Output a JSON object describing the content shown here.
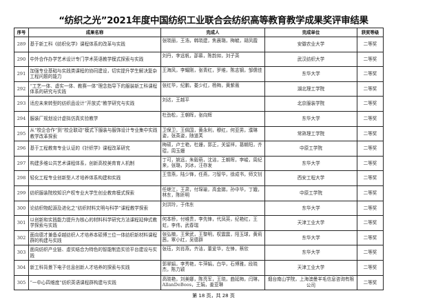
{
  "title": "“纺织之光”2021年度中国纺织工业联合会纺织高等教育教学成果奖评审结果",
  "headers": [
    "序号",
    "成果名称",
    "完成人",
    "完成单位",
    "获奖等级"
  ],
  "rows": [
    [
      "289",
      "基于新工科《纺织化学》课程体系的改革与实践",
      "张晓丽，王浩，韩晓建，焦晨璐，梅毓，胡凤霞",
      "安徽农业大学",
      "二等奖"
    ],
    [
      "290",
      "中外合作办学艺术设计专门学术英语教学模式探索与实践",
      "刘丹，李远帆，邵慕，陈韵如，刘子英",
      "武汉纺织大学",
      "二等奖"
    ],
    [
      "291",
      "加强专业基础与实践类课程的协同建设，切实提升学生解决复杂工程问题的能力",
      "王海风，李耀刚，张青红，罗维，陈志钢，邹儒佳",
      "东华大学",
      "二等奖"
    ],
    [
      "292",
      "“工艺一体、虚实一体、教赛一体”理念指导下的服装新工科课程体系的研究与实践",
      "张红华，纪鹏，娄少红，杨梅，黄紫薇",
      "湖北理工学院",
      "二等奖"
    ],
    [
      "293",
      "适应未来转型的纺织品设计“开放式”教学研究与实践",
      "刘达，王越平",
      "北京服装学院",
      "二等奖"
    ],
    [
      "294",
      "服装厂规划设计虚拟仿真实验教学",
      "杜劲松，王朝晖，张向辉",
      "东华大学",
      "二等奖"
    ],
    [
      "295",
      "从“校企合作”到“校企联动”模式下服装与服饰设计专业集中实践教学改革探索",
      "卫保卫，王佩国，黄永利，穆红，何亚男，濮琳姿，张英姿，随道芙",
      "常熟理工学院",
      "二等奖"
    ],
    [
      "296",
      "基于工程教育专业认证的《针织学》课程改革研究",
      "梅硕，卢士艳，杜姗，郭正，关留祥，葛朝阳，齐琨，周玉姗",
      "中原工学院",
      "二等奖"
    ],
    [
      "297",
      "构建多维公共艺术课程体系，创新高校美育育人机制",
      "丁可，姚远，朱毅萌，沈洁，王朝晖，李峻，周纪来，张璐，刘冰，汪存发",
      "东华大学",
      "二等奖"
    ],
    [
      "298",
      "轻化工程专业创新型人才培养体系构建和实践",
      "王雪燕，陆少锋，任燕，刁智华，徐成书，师文钊",
      "西安工程大学",
      "二等奖"
    ],
    [
      "299",
      "纺织服装院校知识产权专业大学生创业教育模式探索",
      "任继江，王肃，付琛瑜，高金娣，孙中华，丁娥，林东，陈昕明",
      "中原工学院",
      "二等奖"
    ],
    [
      "300",
      "论纺织物起源及进化之“纺织材料文明与科学”课程教学探索",
      "刘洪玲，于伟东",
      "东华大学",
      "二等奖"
    ],
    [
      "301",
      "以创新和实践能力提升为核心的材料科学研究方法课程延伸式教学探索与实践",
      "何本桥，付维贵，李先锋，代凤英，纪艳红，王虹，李伟，武春瑞",
      "天津工业大学",
      "二等奖"
    ],
    [
      "302",
      "面向德才兼备卓越纺织人才培养本硕博三位一体纺织新材料课程群的构建与实践",
      "张弘楠，王荣武，王黎明，权震震，阳玉球，黄莉茜，覃小红，吴德群",
      "东华大学",
      "二等奖"
    ],
    [
      "303",
      "面向纺织产业链、虚实结合为特色的智能制造实验平台建设与实践",
      "张珏，刘肖燕，齐洁，董爱华，左锋，蔡欣",
      "东华大学",
      "二等奖"
    ],
    [
      "304",
      "新工科背景下电子信息创新人才培养的探索与实践",
      "郭翠娟，李秀艳，牛萍娟，白华，石博雅，段晓杰，陈力颖",
      "天津工业大学",
      "二等奖"
    ],
    [
      "305",
      "“一中心四维度”纺织英语课程群构建与实践",
      "高晓艳，刘美娜，陈亮军，王晓，曲延梅，闫琳，AllanDeBoos，王娟，姜亚琳",
      "烟台南山学院，上海澳曼羊毛信息咨询有限公司",
      "二等奖"
    ]
  ],
  "footer": "第 18 页，共 28 页"
}
